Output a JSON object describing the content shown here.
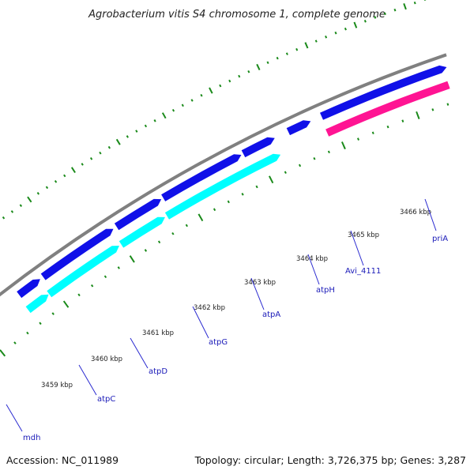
{
  "title": "Agrobacterium vitis S4 chromosome 1, complete genome",
  "footer": {
    "accession": "Accession: NC_011989",
    "summary": "Topology: circular; Length: 3,726,375 bp; Genes: 3,287"
  },
  "colors": {
    "backbone": "#808080",
    "forward_gene": "#1010e8",
    "forward_gene_light": "#00ffff",
    "reverse_gene": "#ff1493",
    "tick": "#1a8a1a",
    "label_line": "#2a2ad0"
  },
  "ruler": [
    {
      "label": "3459 kbp"
    },
    {
      "label": "3460 kbp"
    },
    {
      "label": "3461 kbp"
    },
    {
      "label": "3462 kbp"
    },
    {
      "label": "3463 kbp"
    },
    {
      "label": "3464 kbp"
    },
    {
      "label": "3465 kbp"
    },
    {
      "label": "3466 kbp"
    }
  ],
  "genes": [
    {
      "name": "mdh"
    },
    {
      "name": "atpC"
    },
    {
      "name": "atpD"
    },
    {
      "name": "atpG"
    },
    {
      "name": "atpA"
    },
    {
      "name": "atpH"
    },
    {
      "name": "Avi_4111"
    },
    {
      "name": "priA"
    }
  ]
}
